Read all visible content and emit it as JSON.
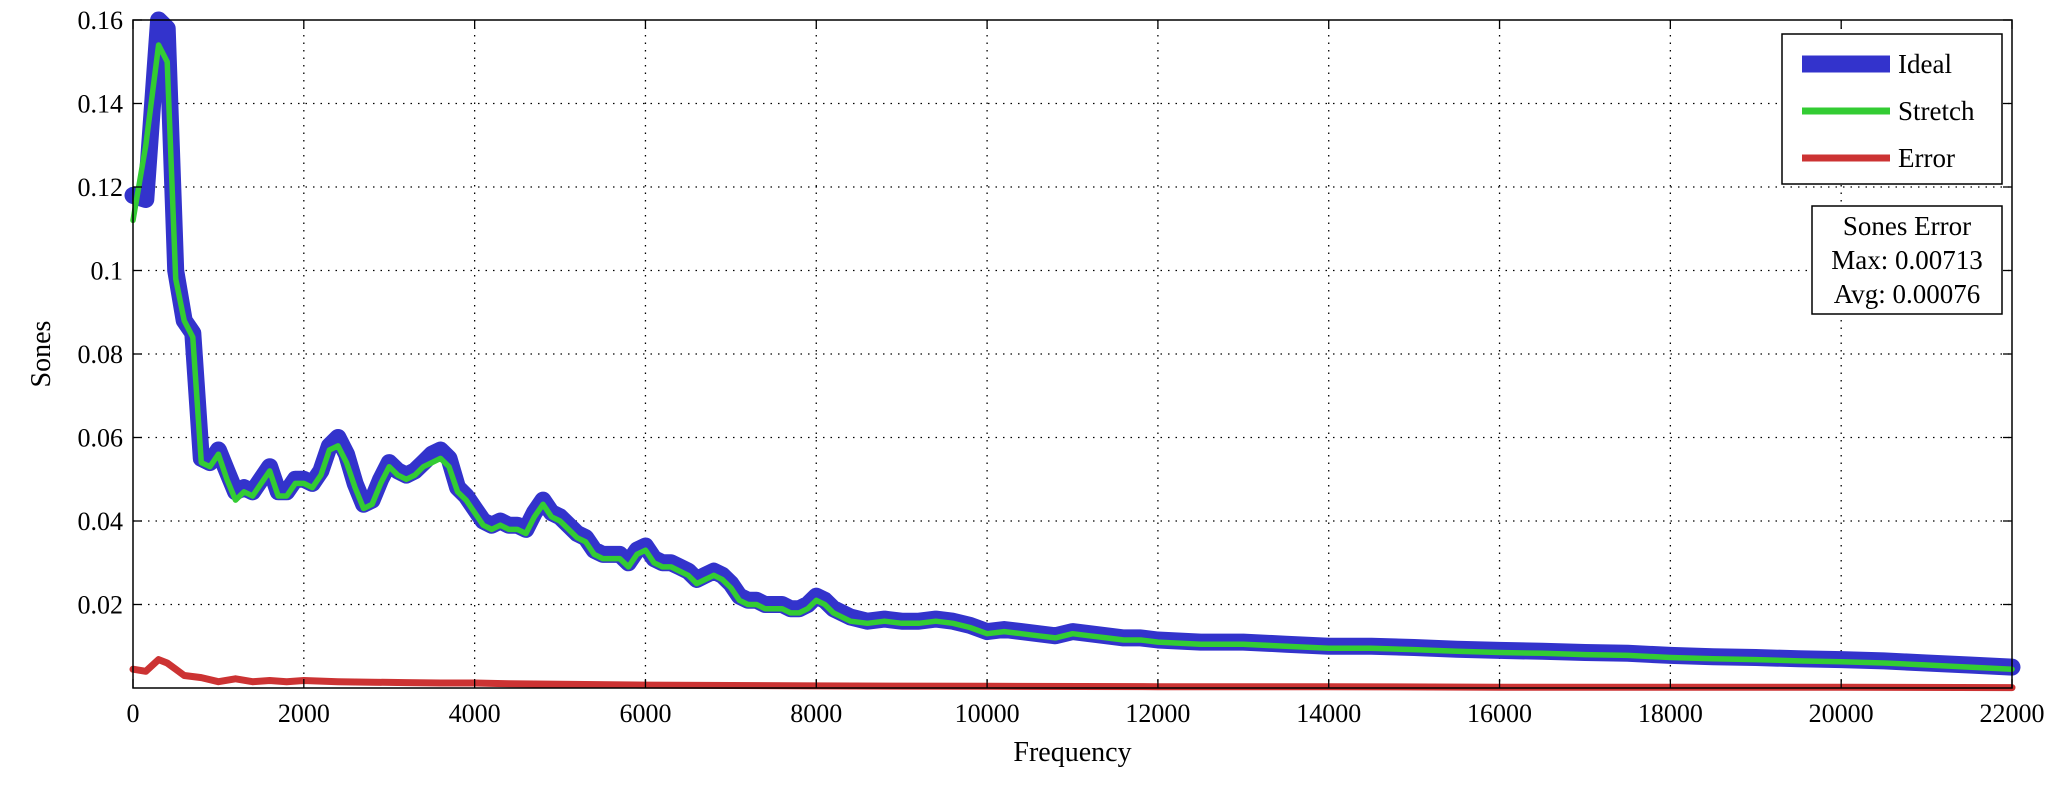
{
  "chart_data": {
    "type": "line",
    "xlabel": "Frequency",
    "ylabel": "Sones",
    "xlim": [
      0,
      22000
    ],
    "ylim": [
      0,
      0.16
    ],
    "grid": true,
    "legend_position": "top-right",
    "x_ticks": [
      "0",
      "2000",
      "4000",
      "6000",
      "8000",
      "10000",
      "12000",
      "14000",
      "16000",
      "18000",
      "20000",
      "22000"
    ],
    "y_ticks": [
      "0.02",
      "0.04",
      "0.06",
      "0.08",
      "0.1",
      "0.12",
      "0.14",
      "0.16"
    ],
    "annotation": {
      "title": "Sones Error",
      "max_label": "Max: 0.00713",
      "avg_label": "Avg: 0.00076"
    },
    "series": [
      {
        "name": "Ideal",
        "color": "#3333cc",
        "x": [
          0,
          150,
          300,
          400,
          500,
          600,
          700,
          800,
          900,
          1000,
          1100,
          1200,
          1300,
          1400,
          1500,
          1600,
          1700,
          1800,
          1900,
          2000,
          2100,
          2200,
          2300,
          2400,
          2500,
          2600,
          2700,
          2800,
          2900,
          3000,
          3100,
          3200,
          3300,
          3400,
          3500,
          3600,
          3700,
          3800,
          3900,
          4000,
          4100,
          4200,
          4300,
          4400,
          4500,
          4600,
          4700,
          4800,
          4900,
          5000,
          5100,
          5200,
          5300,
          5400,
          5500,
          5600,
          5700,
          5800,
          5900,
          6000,
          6100,
          6200,
          6300,
          6400,
          6500,
          6600,
          6700,
          6800,
          6900,
          7000,
          7100,
          7200,
          7300,
          7400,
          7500,
          7600,
          7700,
          7800,
          7900,
          8000,
          8100,
          8200,
          8400,
          8600,
          8800,
          9000,
          9200,
          9400,
          9600,
          9800,
          10000,
          10200,
          10400,
          10600,
          10800,
          11000,
          11200,
          11400,
          11600,
          11800,
          12000,
          12500,
          13000,
          13500,
          14000,
          14500,
          15000,
          15500,
          16000,
          16500,
          17000,
          17500,
          18000,
          18500,
          19000,
          19500,
          20000,
          20500,
          21000,
          21500,
          22000
        ],
        "y": [
          0.118,
          0.117,
          0.16,
          0.158,
          0.1,
          0.088,
          0.085,
          0.055,
          0.054,
          0.057,
          0.052,
          0.047,
          0.048,
          0.047,
          0.05,
          0.053,
          0.047,
          0.047,
          0.05,
          0.05,
          0.049,
          0.052,
          0.058,
          0.06,
          0.056,
          0.049,
          0.044,
          0.045,
          0.05,
          0.054,
          0.052,
          0.051,
          0.052,
          0.054,
          0.056,
          0.057,
          0.055,
          0.048,
          0.046,
          0.043,
          0.04,
          0.039,
          0.04,
          0.039,
          0.039,
          0.038,
          0.042,
          0.045,
          0.042,
          0.041,
          0.039,
          0.037,
          0.036,
          0.033,
          0.032,
          0.032,
          0.032,
          0.03,
          0.033,
          0.034,
          0.031,
          0.03,
          0.03,
          0.029,
          0.028,
          0.026,
          0.027,
          0.028,
          0.027,
          0.025,
          0.022,
          0.021,
          0.021,
          0.02,
          0.02,
          0.02,
          0.019,
          0.019,
          0.02,
          0.022,
          0.021,
          0.019,
          0.017,
          0.016,
          0.0165,
          0.016,
          0.016,
          0.0165,
          0.016,
          0.015,
          0.0135,
          0.014,
          0.0135,
          0.013,
          0.0125,
          0.0135,
          0.013,
          0.0125,
          0.012,
          0.012,
          0.0115,
          0.011,
          0.011,
          0.0105,
          0.01,
          0.01,
          0.0097,
          0.0093,
          0.009,
          0.0088,
          0.0085,
          0.0083,
          0.0078,
          0.0075,
          0.0073,
          0.007,
          0.0068,
          0.0065,
          0.006,
          0.0055,
          0.005
        ]
      },
      {
        "name": "Stretch",
        "color": "#33cc33",
        "x": [
          0,
          150,
          300,
          400,
          500,
          600,
          700,
          800,
          900,
          1000,
          1100,
          1200,
          1300,
          1400,
          1500,
          1600,
          1700,
          1800,
          1900,
          2000,
          2100,
          2200,
          2300,
          2400,
          2500,
          2600,
          2700,
          2800,
          2900,
          3000,
          3100,
          3200,
          3300,
          3400,
          3500,
          3600,
          3700,
          3800,
          3900,
          4000,
          4100,
          4200,
          4300,
          4400,
          4500,
          4600,
          4700,
          4800,
          4900,
          5000,
          5100,
          5200,
          5300,
          5400,
          5500,
          5600,
          5700,
          5800,
          5900,
          6000,
          6100,
          6200,
          6300,
          6400,
          6500,
          6600,
          6700,
          6800,
          6900,
          7000,
          7100,
          7200,
          7300,
          7400,
          7500,
          7600,
          7700,
          7800,
          7900,
          8000,
          8100,
          8200,
          8400,
          8600,
          8800,
          9000,
          9200,
          9400,
          9600,
          9800,
          10000,
          10200,
          10400,
          10600,
          10800,
          11000,
          11200,
          11400,
          11600,
          11800,
          12000,
          12500,
          13000,
          13500,
          14000,
          14500,
          15000,
          15500,
          16000,
          16500,
          17000,
          17500,
          18000,
          18500,
          19000,
          19500,
          20000,
          20500,
          21000,
          21500,
          22000
        ],
        "y": [
          0.112,
          0.13,
          0.154,
          0.15,
          0.098,
          0.088,
          0.084,
          0.054,
          0.053,
          0.056,
          0.05,
          0.045,
          0.047,
          0.046,
          0.049,
          0.052,
          0.046,
          0.046,
          0.049,
          0.049,
          0.048,
          0.051,
          0.057,
          0.058,
          0.054,
          0.048,
          0.043,
          0.044,
          0.049,
          0.053,
          0.051,
          0.05,
          0.051,
          0.053,
          0.054,
          0.055,
          0.053,
          0.047,
          0.045,
          0.042,
          0.039,
          0.038,
          0.039,
          0.038,
          0.038,
          0.037,
          0.041,
          0.044,
          0.041,
          0.04,
          0.038,
          0.036,
          0.035,
          0.032,
          0.031,
          0.031,
          0.031,
          0.029,
          0.032,
          0.033,
          0.03,
          0.029,
          0.029,
          0.028,
          0.027,
          0.025,
          0.026,
          0.027,
          0.026,
          0.024,
          0.021,
          0.02,
          0.02,
          0.019,
          0.019,
          0.019,
          0.018,
          0.018,
          0.019,
          0.021,
          0.02,
          0.018,
          0.016,
          0.0155,
          0.016,
          0.0155,
          0.0155,
          0.016,
          0.0155,
          0.0145,
          0.013,
          0.0135,
          0.013,
          0.0125,
          0.012,
          0.013,
          0.0125,
          0.012,
          0.0115,
          0.0115,
          0.011,
          0.0105,
          0.0105,
          0.01,
          0.0095,
          0.0095,
          0.0092,
          0.0088,
          0.0085,
          0.0083,
          0.008,
          0.0078,
          0.0073,
          0.007,
          0.0068,
          0.0065,
          0.0063,
          0.006,
          0.0055,
          0.005,
          0.0045
        ]
      },
      {
        "name": "Error",
        "color": "#cc3333",
        "x": [
          0,
          150,
          300,
          400,
          500,
          600,
          800,
          1000,
          1200,
          1400,
          1600,
          1800,
          2000,
          2400,
          2800,
          3200,
          3600,
          4000,
          4400,
          5000,
          6000,
          7000,
          8000,
          10000,
          12000,
          14000,
          16000,
          18000,
          20000,
          22000
        ],
        "y": [
          0.0045,
          0.004,
          0.0068,
          0.006,
          0.0045,
          0.003,
          0.0025,
          0.0015,
          0.0022,
          0.0015,
          0.0018,
          0.0015,
          0.0018,
          0.0015,
          0.0014,
          0.0013,
          0.0012,
          0.0012,
          0.001,
          0.0009,
          0.0007,
          0.0006,
          0.0005,
          0.0004,
          0.0003,
          0.0003,
          0.0002,
          0.0002,
          0.0002,
          0.0001
        ]
      }
    ]
  }
}
